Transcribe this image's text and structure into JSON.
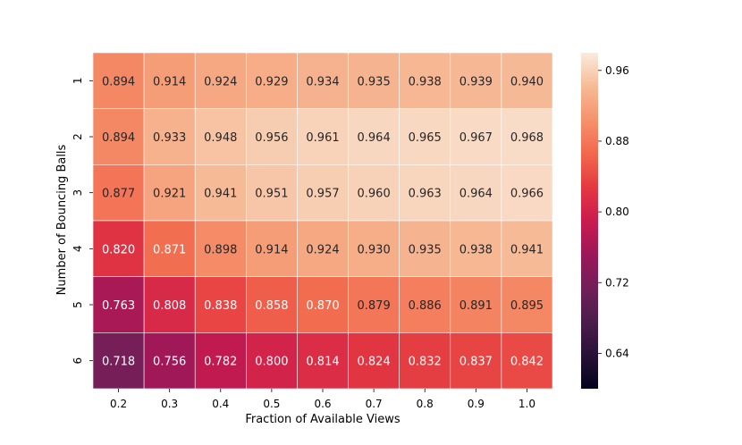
{
  "chart_data": {
    "type": "heatmap",
    "xlabel": "Fraction of Available Views",
    "ylabel": "Number of Bouncing Balls",
    "x_categories": [
      "0.2",
      "0.3",
      "0.4",
      "0.5",
      "0.6",
      "0.7",
      "0.8",
      "0.9",
      "1.0"
    ],
    "y_categories": [
      "1",
      "2",
      "3",
      "4",
      "5",
      "6"
    ],
    "values": [
      [
        0.894,
        0.914,
        0.924,
        0.929,
        0.934,
        0.935,
        0.938,
        0.939,
        0.94
      ],
      [
        0.894,
        0.933,
        0.948,
        0.956,
        0.961,
        0.964,
        0.965,
        0.967,
        0.968
      ],
      [
        0.877,
        0.921,
        0.941,
        0.951,
        0.957,
        0.96,
        0.963,
        0.964,
        0.966
      ],
      [
        0.82,
        0.871,
        0.898,
        0.914,
        0.924,
        0.93,
        0.935,
        0.938,
        0.941
      ],
      [
        0.763,
        0.808,
        0.838,
        0.858,
        0.87,
        0.879,
        0.886,
        0.891,
        0.895
      ],
      [
        0.718,
        0.756,
        0.782,
        0.8,
        0.814,
        0.824,
        0.832,
        0.837,
        0.842
      ]
    ],
    "value_format": "3 decimals",
    "colormap": "rocket",
    "color_range": [
      0.6,
      0.98
    ],
    "colorbar_ticks": [
      "0.64",
      "0.72",
      "0.80",
      "0.88",
      "0.96"
    ],
    "colorbar_tick_values": [
      0.64,
      0.72,
      0.8,
      0.88,
      0.96
    ],
    "grid": false,
    "legend": "colorbar-right"
  }
}
